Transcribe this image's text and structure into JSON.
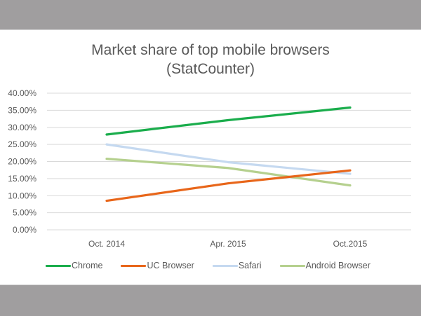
{
  "title_line1": "Market share of top mobile browsers",
  "title_line2": "(StatCounter)",
  "colors": {
    "background_band": "#a09e9f",
    "text": "#595959",
    "gridline": "#d9d9d9",
    "chrome": "#1aad4c",
    "uc_browser": "#e8661a",
    "safari": "#c5d9f0",
    "android_browser": "#b5d08e"
  },
  "chart_data": {
    "type": "line",
    "title": "Market share of top mobile browsers (StatCounter)",
    "xlabel": "",
    "ylabel": "",
    "categories": [
      "Oct. 2014",
      "Apr. 2015",
      "Oct.2015"
    ],
    "series": [
      {
        "name": "Chrome",
        "values": [
          27.9,
          32.1,
          35.8
        ]
      },
      {
        "name": "UC Browser",
        "values": [
          8.5,
          13.6,
          17.4
        ]
      },
      {
        "name": "Safari",
        "values": [
          25.0,
          19.8,
          16.4
        ]
      },
      {
        "name": "Android Browser",
        "values": [
          20.8,
          18.1,
          13.0
        ]
      }
    ],
    "yticks": [
      "0.00%",
      "5.00%",
      "10.00%",
      "15.00%",
      "20.00%",
      "25.00%",
      "30.00%",
      "35.00%",
      "40.00%"
    ],
    "ylim": [
      0,
      40
    ],
    "grid": true,
    "legend_position": "bottom"
  },
  "legend": [
    {
      "label": "Chrome",
      "color": "#1aad4c"
    },
    {
      "label": "UC Browser",
      "color": "#e8661a"
    },
    {
      "label": "Safari",
      "color": "#c5d9f0"
    },
    {
      "label": "Android Browser",
      "color": "#b5d08e"
    }
  ]
}
